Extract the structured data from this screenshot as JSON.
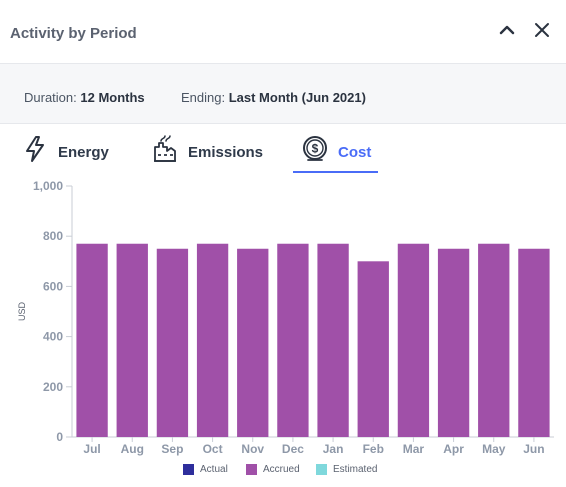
{
  "header": {
    "title": "Activity by Period"
  },
  "filters": {
    "duration_label": "Duration:",
    "duration_value": "12 Months",
    "ending_label": "Ending:",
    "ending_value": "Last Month (Jun 2021)"
  },
  "tabs": [
    {
      "label": "Energy",
      "icon": "lightning-bolt-icon",
      "active": false
    },
    {
      "label": "Emissions",
      "icon": "factory-icon",
      "active": false
    },
    {
      "label": "Cost",
      "icon": "dollar-coin-icon",
      "active": true
    }
  ],
  "colors": {
    "accent": "#4a6cf7",
    "actual": "#2e2e9c",
    "accrued": "#a050a8",
    "estimated": "#7fd8dc"
  },
  "chart_data": {
    "type": "bar",
    "ylabel": "USD",
    "ylim": [
      0,
      1000
    ],
    "yticks": [
      "0",
      "200",
      "400",
      "600",
      "800",
      "1,000"
    ],
    "categories": [
      "Jul",
      "Aug",
      "Sep",
      "Oct",
      "Nov",
      "Dec",
      "Jan",
      "Feb",
      "Mar",
      "Apr",
      "May",
      "Jun"
    ],
    "series": [
      {
        "name": "Actual",
        "values": [
          0,
          0,
          0,
          0,
          0,
          0,
          0,
          0,
          0,
          0,
          0,
          0
        ]
      },
      {
        "name": "Accrued",
        "values": [
          770,
          770,
          750,
          770,
          750,
          770,
          770,
          700,
          770,
          750,
          770,
          750
        ]
      },
      {
        "name": "Estimated",
        "values": [
          0,
          0,
          0,
          0,
          0,
          0,
          0,
          0,
          0,
          0,
          0,
          0
        ]
      }
    ],
    "grid": false,
    "legend": "bottom-center"
  }
}
